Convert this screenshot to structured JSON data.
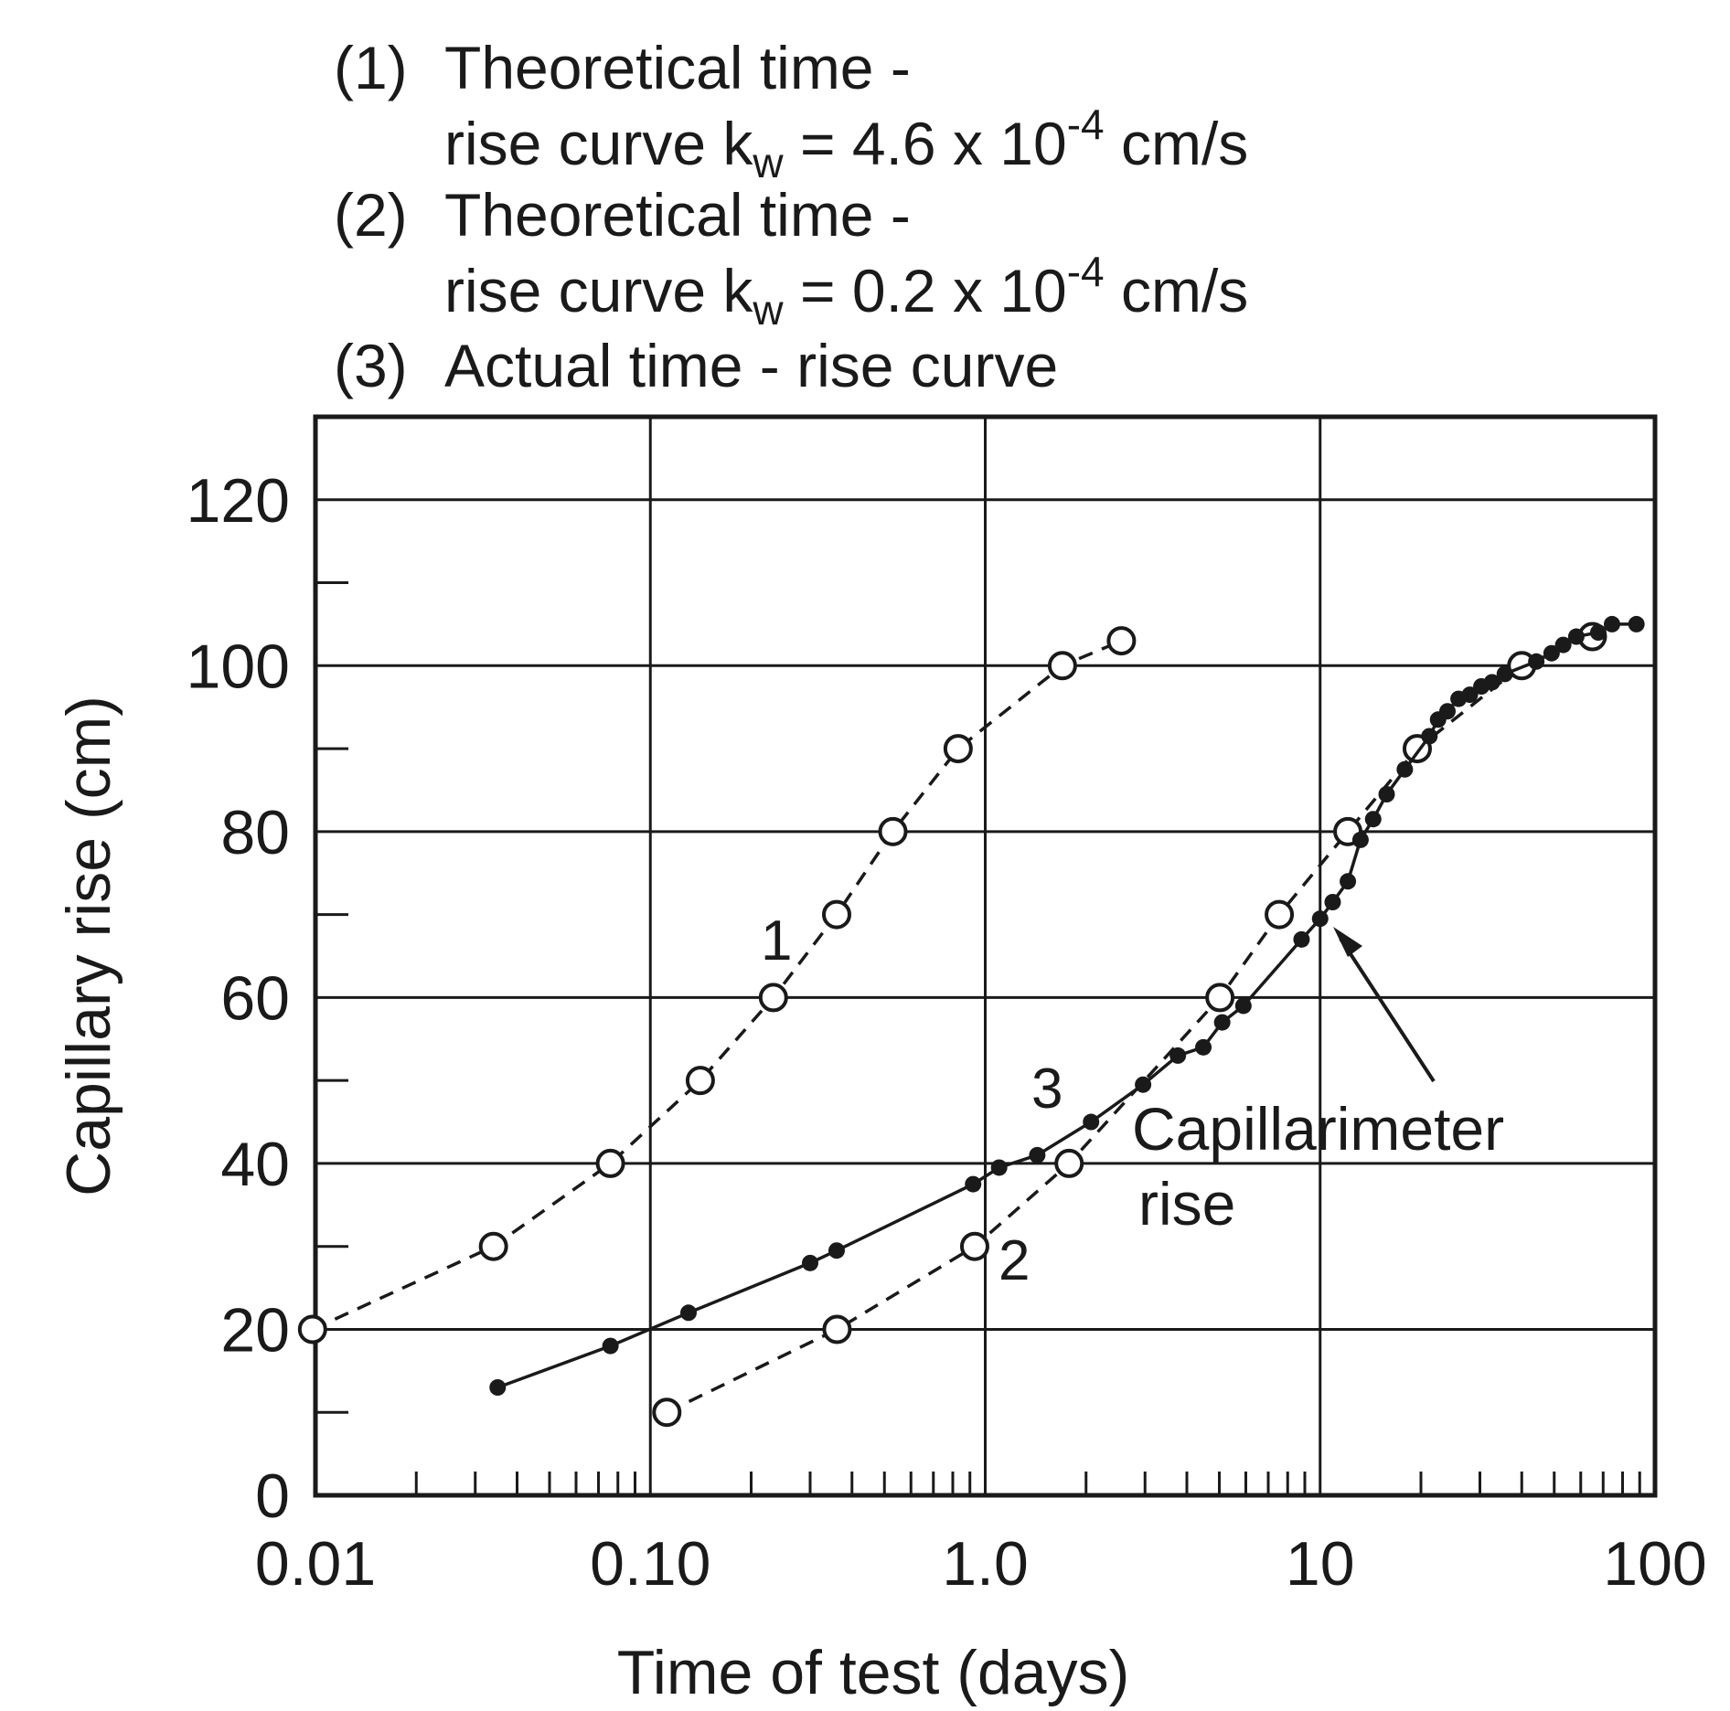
{
  "legend": {
    "items": [
      {
        "num": "(1)",
        "line1": "Theoretical time -",
        "line2_pre": "rise curve k",
        "line2_sub": "w",
        "line2_mid": " = 4.6 x 10",
        "line2_sup": "-4",
        "line2_post": " cm/s"
      },
      {
        "num": "(2)",
        "line1": "Theoretical time -",
        "line2_pre": "rise curve k",
        "line2_sub": "w",
        "line2_mid": " = 0.2 x 10",
        "line2_sup": "-4",
        "line2_post": " cm/s"
      },
      {
        "num": "(3)",
        "line1": "Actual time - rise curve"
      }
    ]
  },
  "annotations": {
    "curve1": "1",
    "curve2": "2",
    "curve3": "3",
    "capillarimeter_line1": "Capillarimeter",
    "capillarimeter_line2": "rise"
  },
  "chart_data": {
    "type": "line",
    "xlabel": "Time of test (days)",
    "ylabel": "Capillary rise (cm)",
    "xscale": "log",
    "xlim": [
      0.01,
      100
    ],
    "ylim": [
      0,
      130
    ],
    "xticks": [
      {
        "value": 0.01,
        "label": "0.01"
      },
      {
        "value": 0.1,
        "label": "0.10"
      },
      {
        "value": 1,
        "label": "1.0"
      },
      {
        "value": 10,
        "label": "10"
      },
      {
        "value": 100,
        "label": "100"
      }
    ],
    "yticks": [
      {
        "value": 0,
        "label": "0"
      },
      {
        "value": 20,
        "label": "20"
      },
      {
        "value": 40,
        "label": "40"
      },
      {
        "value": 60,
        "label": "60"
      },
      {
        "value": 80,
        "label": "80"
      },
      {
        "value": 100,
        "label": "100"
      },
      {
        "value": 120,
        "label": "120"
      }
    ],
    "grid": true,
    "series": [
      {
        "name": "1",
        "marker": "open-circle",
        "line": "dashed",
        "points": [
          [
            0.0098,
            20
          ],
          [
            0.034,
            30
          ],
          [
            0.076,
            40
          ],
          [
            0.141,
            50
          ],
          [
            0.233,
            60
          ],
          [
            0.36,
            70
          ],
          [
            0.53,
            80
          ],
          [
            0.83,
            90
          ],
          [
            1.7,
            100
          ],
          [
            2.55,
            103
          ]
        ]
      },
      {
        "name": "2",
        "marker": "open-circle",
        "line": "dashed",
        "points": [
          [
            0.112,
            10
          ],
          [
            0.361,
            20
          ],
          [
            0.93,
            30
          ],
          [
            1.78,
            40
          ],
          [
            5.02,
            60
          ],
          [
            7.55,
            70
          ],
          [
            12.1,
            80
          ],
          [
            19.5,
            90
          ],
          [
            40,
            100
          ],
          [
            65,
            103.5
          ]
        ]
      },
      {
        "name": "3",
        "marker": "filled-circle",
        "line": "solid",
        "points": [
          [
            0.035,
            13
          ],
          [
            0.076,
            18
          ],
          [
            0.13,
            22
          ],
          [
            0.3,
            28
          ],
          [
            0.36,
            29.5
          ],
          [
            0.92,
            37.5
          ],
          [
            1.1,
            39.5
          ],
          [
            1.43,
            41
          ],
          [
            2.07,
            45
          ],
          [
            2.96,
            49.5
          ],
          [
            3.76,
            53
          ],
          [
            4.48,
            54
          ],
          [
            5.1,
            57
          ],
          [
            5.9,
            59
          ],
          [
            8.8,
            67
          ],
          [
            10.0,
            69.5
          ],
          [
            10.9,
            71.5
          ],
          [
            12.1,
            74
          ],
          [
            13.2,
            79
          ],
          [
            14.4,
            81.5
          ],
          [
            15.8,
            84.5
          ],
          [
            17.9,
            87.5
          ],
          [
            21.2,
            91.5
          ],
          [
            22.5,
            93.5
          ],
          [
            24.0,
            94.5
          ],
          [
            25.9,
            96
          ],
          [
            28.0,
            96.5
          ],
          [
            30.3,
            97.5
          ],
          [
            32.6,
            98
          ],
          [
            35.6,
            99
          ],
          [
            44.2,
            100.5
          ],
          [
            49.1,
            101.5
          ],
          [
            53.2,
            102.5
          ],
          [
            58.2,
            103.5
          ],
          [
            67.7,
            104
          ],
          [
            74.4,
            105
          ],
          [
            88,
            105
          ]
        ]
      }
    ]
  }
}
